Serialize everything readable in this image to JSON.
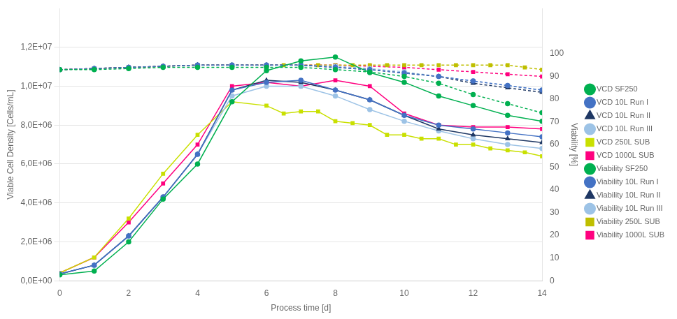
{
  "chart_data": {
    "type": "line",
    "xlabel": "Process time [d]",
    "ylabel": "Viable Cell Density [Cells/mL]",
    "y2label": "Viability [%]",
    "xlim": [
      0,
      14
    ],
    "xticks": [
      0,
      2,
      4,
      6,
      8,
      10,
      12,
      14
    ],
    "ylim": [
      0,
      14000000.0
    ],
    "yticks": [
      {
        "value": 0,
        "label": "0,0E+00"
      },
      {
        "value": 2000000.0,
        "label": "2,0E+06"
      },
      {
        "value": 4000000.0,
        "label": "4,0E+06"
      },
      {
        "value": 6000000.0,
        "label": "6,0E+06"
      },
      {
        "value": 8000000.0,
        "label": "8,0E+06"
      },
      {
        "value": 10000000.0,
        "label": "1,0E+07"
      },
      {
        "value": 12000000.0,
        "label": "1,2E+07"
      }
    ],
    "y2lim": [
      0,
      120
    ],
    "y2ticks": [
      0,
      10,
      20,
      30,
      40,
      50,
      60,
      70,
      80,
      90,
      100
    ],
    "grid": true,
    "legend": "right",
    "series": [
      {
        "name": "VCD SF250",
        "color": "#00b050",
        "marker": "circle",
        "line_style": "solid",
        "axis": "y",
        "x": [
          0,
          1,
          2,
          3,
          4,
          5,
          6,
          7,
          8,
          9,
          10,
          11,
          12,
          13,
          14
        ],
        "values": [
          300000.0,
          500000.0,
          2000000.0,
          4200000.0,
          6000000.0,
          9200000.0,
          10800000.0,
          11300000.0,
          11500000.0,
          10700000.0,
          10200000.0,
          9500000.0,
          9000000.0,
          8500000.0,
          8200000.0
        ]
      },
      {
        "name": "VCD 10L Run I",
        "color": "#4472c4",
        "marker": "circle",
        "line_style": "solid",
        "axis": "y",
        "x": [
          0,
          1,
          2,
          3,
          4,
          5,
          6,
          7,
          8,
          9,
          10,
          11,
          12,
          13,
          14
        ],
        "values": [
          350000.0,
          800000.0,
          2300000.0,
          4300000.0,
          6500000.0,
          9800000.0,
          10200000.0,
          10300000.0,
          9800000.0,
          9300000.0,
          8500000.0,
          8000000.0,
          7800000.0,
          7600000.0,
          7400000.0
        ]
      },
      {
        "name": "VCD 10L Run II",
        "color": "#1f3864",
        "marker": "triangle",
        "line_style": "solid",
        "axis": "y",
        "x": [
          0,
          1,
          2,
          3,
          4,
          5,
          6,
          7,
          8,
          9,
          10,
          11,
          12,
          13,
          14
        ],
        "values": [
          350000.0,
          800000.0,
          2300000.0,
          4300000.0,
          6500000.0,
          9800000.0,
          10300000.0,
          10200000.0,
          9800000.0,
          9300000.0,
          8500000.0,
          7800000.0,
          7500000.0,
          7300000.0,
          7100000.0
        ]
      },
      {
        "name": "VCD 10L Run III",
        "color": "#9dc3e6",
        "marker": "circle",
        "line_style": "solid",
        "axis": "y",
        "x": [
          0,
          1,
          2,
          3,
          4,
          5,
          6,
          7,
          8,
          9,
          10,
          11,
          12,
          13,
          14
        ],
        "values": [
          350000.0,
          800000.0,
          2300000.0,
          4300000.0,
          6500000.0,
          9500000.0,
          10000000.0,
          10000000.0,
          9500000.0,
          8800000.0,
          8200000.0,
          7700000.0,
          7300000.0,
          7000000.0,
          6800000.0
        ]
      },
      {
        "name": "VCD 250L SUB",
        "color": "#c9e000",
        "marker": "square",
        "line_style": "solid",
        "axis": "y",
        "x": [
          0,
          1,
          2,
          3,
          4,
          5,
          6,
          6.5,
          7,
          7.5,
          8,
          8.5,
          9,
          9.5,
          10,
          10.5,
          11,
          11.5,
          12,
          12.5,
          13,
          13.5,
          14
        ],
        "values": [
          400000.0,
          1200000.0,
          3200000.0,
          5500000.0,
          7500000.0,
          9200000.0,
          9000000.0,
          8600000.0,
          8700000.0,
          8700000.0,
          8200000.0,
          8100000.0,
          8000000.0,
          7500000.0,
          7500000.0,
          7300000.0,
          7300000.0,
          7000000.0,
          7000000.0,
          6800000.0,
          6700000.0,
          6600000.0,
          6400000.0
        ]
      },
      {
        "name": "VCD 1000L SUB",
        "color": "#ff007f",
        "marker": "square",
        "line_style": "solid",
        "axis": "y",
        "x": [
          0,
          1,
          2,
          3,
          4,
          5,
          6,
          7,
          8,
          9,
          10,
          11,
          12,
          13,
          14
        ],
        "values": [
          400000.0,
          1200000.0,
          3000000.0,
          5000000.0,
          7000000.0,
          10000000.0,
          10200000.0,
          10000000.0,
          10300000.0,
          10000000.0,
          8600000.0,
          8000000.0,
          7900000.0,
          7900000.0,
          7800000.0
        ]
      },
      {
        "name": "Viability SF250",
        "color": "#00b050",
        "marker": "circle",
        "line_style": "dashed",
        "axis": "y2",
        "x": [
          0,
          1,
          2,
          3,
          4,
          5,
          6,
          7,
          8,
          9,
          10,
          11,
          12,
          13,
          14
        ],
        "values": [
          93,
          93,
          93.5,
          94,
          94,
          94,
          94,
          94,
          93,
          92,
          90,
          87,
          82,
          78,
          74
        ]
      },
      {
        "name": "Viability 10L Run I",
        "color": "#4472c4",
        "marker": "circle",
        "line_style": "dashed",
        "axis": "y2",
        "x": [
          0,
          1,
          2,
          3,
          4,
          5,
          6,
          7,
          8,
          9,
          10,
          11,
          12,
          13,
          14
        ],
        "values": [
          93,
          93.5,
          94,
          94.5,
          95,
          95,
          95,
          95,
          94,
          93,
          91.5,
          90,
          88,
          86,
          84
        ]
      },
      {
        "name": "Viability 10L Run II",
        "color": "#1f3864",
        "marker": "triangle",
        "line_style": "dashed",
        "axis": "y2",
        "x": [
          0,
          1,
          2,
          3,
          4,
          5,
          6,
          7,
          8,
          9,
          10,
          11,
          12,
          13,
          14
        ],
        "values": [
          93,
          93.5,
          94,
          94.5,
          95,
          95,
          95,
          95,
          94,
          93,
          91.5,
          90,
          87,
          85,
          83
        ]
      },
      {
        "name": "Viability 10L Run III",
        "color": "#9dc3e6",
        "marker": "circle",
        "line_style": "dashed",
        "axis": "y2",
        "x": [
          0,
          1,
          2,
          3,
          4,
          5,
          6,
          7,
          8,
          9,
          10,
          11,
          12,
          13,
          14
        ],
        "values": [
          93,
          93.5,
          94,
          94.5,
          95,
          95,
          95,
          95,
          94.5,
          93.5,
          92,
          90,
          88,
          86,
          84
        ]
      },
      {
        "name": "Viability 250L SUB",
        "color": "#bfbf00",
        "marker": "square",
        "line_style": "dashed",
        "axis": "y2",
        "x": [
          0,
          1,
          2,
          3,
          4,
          5,
          6,
          6.5,
          7,
          7.5,
          8,
          8.5,
          9,
          9.5,
          10,
          10.5,
          11,
          11.5,
          12,
          12.5,
          13,
          13.5,
          14
        ],
        "values": [
          93,
          93.5,
          94,
          94.5,
          95,
          95,
          95,
          95,
          95,
          95,
          95,
          95,
          95,
          95,
          95,
          95,
          95,
          95,
          95,
          95,
          95,
          94,
          93
        ]
      },
      {
        "name": "Viability 1000L SUB",
        "color": "#ff007f",
        "marker": "square",
        "line_style": "dashed",
        "axis": "y2",
        "x": [
          0,
          1,
          2,
          3,
          4,
          5,
          6,
          7,
          8,
          9,
          10,
          11,
          12,
          13,
          14
        ],
        "values": [
          93,
          93.5,
          94,
          94.5,
          95,
          95,
          95,
          95,
          95,
          94.5,
          94,
          93,
          92,
          91,
          90
        ]
      }
    ]
  }
}
